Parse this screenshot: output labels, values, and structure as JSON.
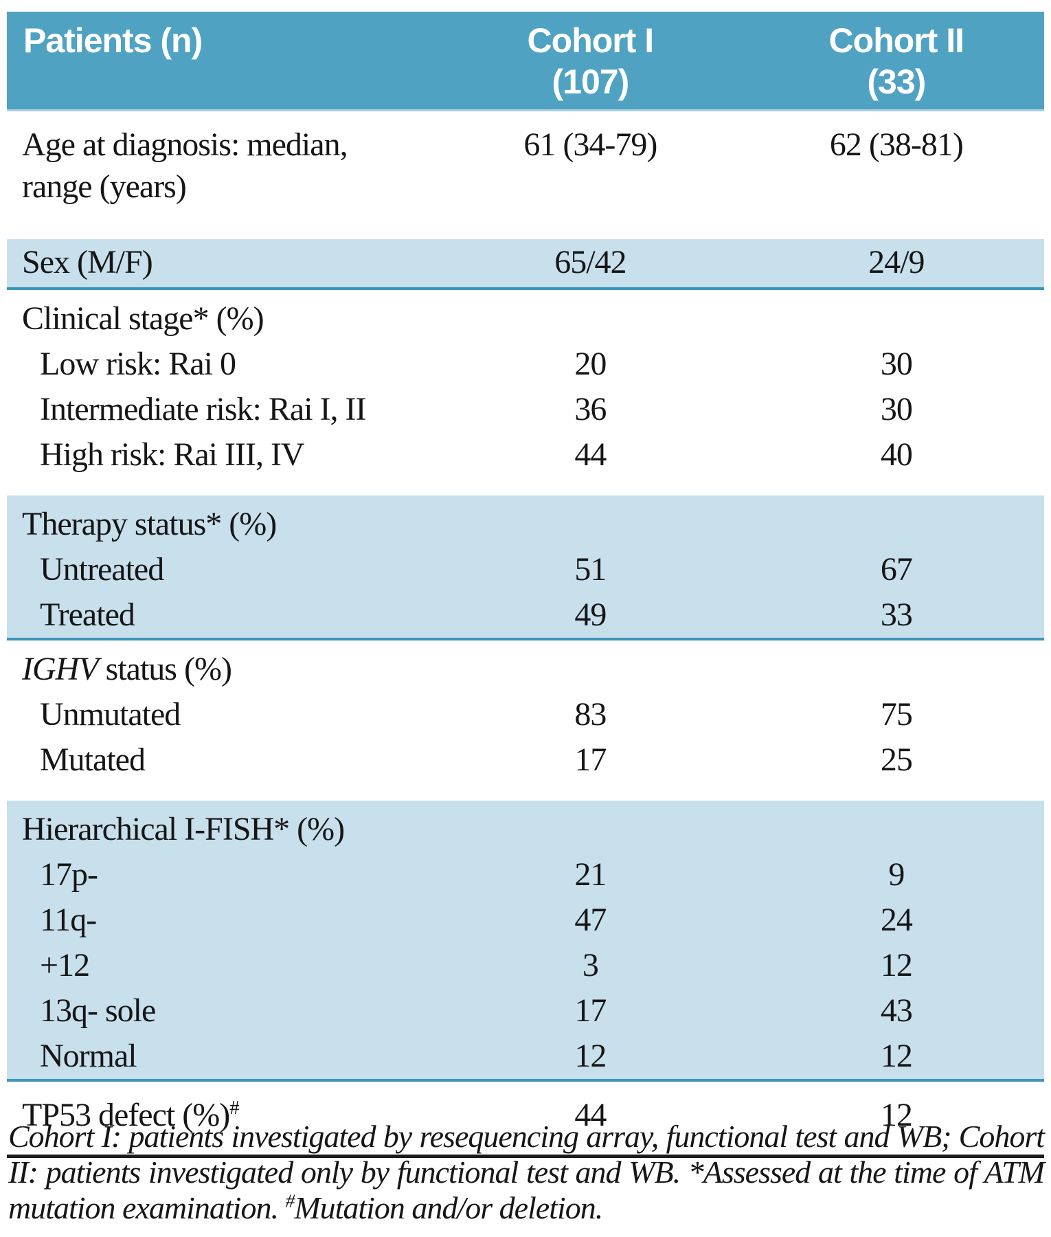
{
  "colors": {
    "header_bg": "#4fa2c2",
    "header_text": "#ffffff",
    "band_blue": "#c8dfec",
    "teal_rule": "#3e95b8",
    "header_bottom_rule": "#a9cfe3",
    "dark_rule": "#1b1b1b",
    "body_text": "#161616"
  },
  "table": {
    "header": {
      "col1": "Patients (n)",
      "col2": "Cohort I\n(107)",
      "col3": "Cohort II\n(33)"
    },
    "sections": [
      {
        "style": "white",
        "rows": [
          {
            "label": "Age at diagnosis: median,\nrange (years)",
            "v1": "61 (34-79)",
            "v2": "62 (38-81)"
          }
        ]
      },
      {
        "style": "blue",
        "rows": [
          {
            "label": "Sex (M/F)",
            "v1": "65/42",
            "v2": "24/9"
          }
        ]
      },
      {
        "style": "white",
        "title": "Clinical stage* (%)",
        "rows": [
          {
            "label": "Low risk: Rai 0",
            "v1": "20",
            "v2": "30"
          },
          {
            "label": "Intermediate risk: Rai I, II",
            "v1": "36",
            "v2": "30"
          },
          {
            "label": "High risk: Rai III, IV",
            "v1": "44",
            "v2": "40"
          }
        ]
      },
      {
        "style": "blue",
        "title": "Therapy status* (%)",
        "rows": [
          {
            "label": "Untreated",
            "v1": "51",
            "v2": "67"
          },
          {
            "label": "Treated",
            "v1": "49",
            "v2": "33"
          }
        ]
      },
      {
        "style": "white",
        "title_italic": "IGHV",
        "title_rest": " status (%)",
        "rows": [
          {
            "label": "Unmutated",
            "v1": "83",
            "v2": "75"
          },
          {
            "label": "Mutated",
            "v1": "17",
            "v2": "25"
          }
        ]
      },
      {
        "style": "blue",
        "title": "Hierarchical I-FISH* (%)",
        "rows": [
          {
            "label": "17p-",
            "v1": "21",
            "v2": "9"
          },
          {
            "label": "11q-",
            "v1": "47",
            "v2": "24"
          },
          {
            "label": "+12",
            "v1": "3",
            "v2": "12"
          },
          {
            "label": "13q- sole",
            "v1": "17",
            "v2": "43"
          },
          {
            "label": "Normal",
            "v1": "12",
            "v2": "12"
          }
        ]
      },
      {
        "style": "white",
        "rows": [
          {
            "label": "TP53 defect (%)",
            "label_sup": "#",
            "v1": "44",
            "v2": "12"
          }
        ]
      }
    ]
  },
  "footnote": {
    "part1": "Cohort I: patients investigated by resequencing array, functional test and WB; Cohort II: patients investigated only by functional test and WB. *Assessed at the time of ATM mutation examination. ",
    "sup": "#",
    "part2": "Mutation and/or deletion."
  }
}
